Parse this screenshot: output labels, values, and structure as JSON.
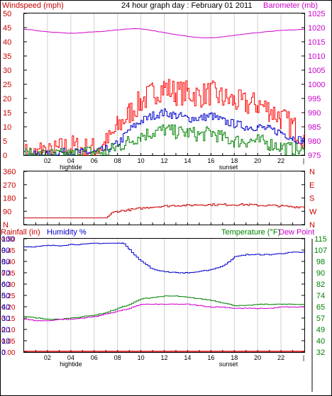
{
  "header": {
    "top_left": "Windspeed (mph)",
    "top_center": "24 hour graph day : February 01 2011",
    "top_right": "Barometer (mb)",
    "bottom_left_1": "Rainfall (in)",
    "bottom_left_2": "Humidity %",
    "bottom_right_1": "Temperature (°F)",
    "bottom_right_2": "Dew Point",
    "x_annot": [
      {
        "label": "hightide",
        "x": 4
      },
      {
        "label": "sunset",
        "x": 17.5
      }
    ]
  },
  "colors": {
    "wind": "#ff0000",
    "gust": "#cc0000",
    "avg_wind": "#0000cc",
    "wind_green": "#008000",
    "barometer": "#cc00cc",
    "direction": "#cc0000",
    "rain": "#cc0000",
    "humidity": "#0000cc",
    "temperature": "#008000",
    "dewpoint": "#cc00cc",
    "left_label": "#cc0000",
    "blue_label": "#0000cc",
    "green_label": "#008000",
    "magenta_label": "#cc00cc"
  },
  "chart_data": [
    {
      "type": "line",
      "x_ticks": [
        "02",
        "04",
        "06",
        "08",
        "10",
        "12",
        "14",
        "16",
        "18",
        "20",
        "22"
      ],
      "x_tick_values": [
        2,
        4,
        6,
        8,
        10,
        12,
        14,
        16,
        18,
        20,
        22
      ],
      "xlim": [
        0,
        24
      ],
      "ylim_left": [
        0,
        50
      ],
      "ylim_right": [
        975,
        1025
      ],
      "y_ticks_left": [
        "0",
        "5",
        "10",
        "15",
        "20",
        "25",
        "30",
        "35",
        "40",
        "45",
        "50"
      ],
      "y_ticks_right": [
        "975",
        "980",
        "985",
        "990",
        "995",
        "1000",
        "1005",
        "1010",
        "1015",
        "1020",
        "1025"
      ],
      "series": [
        {
          "axis": "left",
          "x": [
            0,
            1,
            1.5,
            2,
            3,
            4,
            5,
            6,
            7,
            8,
            9,
            10,
            11,
            12,
            13,
            14,
            15,
            16,
            17,
            18,
            19,
            20,
            21,
            22,
            23,
            24
          ],
          "values": [
            0,
            0,
            2,
            0,
            2,
            3,
            2,
            2,
            4,
            10,
            15,
            19,
            22,
            24,
            22,
            22,
            21,
            22,
            20,
            19,
            18,
            18,
            16,
            13,
            10,
            6
          ]
        },
        {
          "axis": "left",
          "x": [
            0,
            2,
            3,
            4,
            5,
            6,
            7,
            8,
            9,
            10,
            11,
            12,
            13,
            14,
            15,
            16,
            17,
            18,
            19,
            20,
            21,
            22,
            23,
            24
          ],
          "values": [
            0,
            0,
            1,
            1,
            1,
            1,
            2,
            4,
            9,
            12,
            14,
            15,
            14,
            13,
            13,
            14,
            12,
            11,
            10,
            10,
            9,
            8,
            6,
            5
          ]
        },
        {
          "axis": "left",
          "x": [
            0,
            2,
            3,
            4,
            5,
            6,
            7,
            8,
            9,
            10,
            11,
            12,
            13,
            14,
            15,
            16,
            17,
            18,
            19,
            20,
            21,
            22,
            23,
            24
          ],
          "values": [
            0,
            0,
            0,
            0,
            1,
            1,
            1,
            3,
            5,
            7,
            8,
            9,
            8,
            8,
            7,
            8,
            6,
            5,
            5,
            5,
            4,
            3,
            2,
            1
          ]
        },
        {
          "axis": "right",
          "x": [
            0,
            1,
            2,
            3,
            4,
            5,
            6,
            7,
            8,
            9,
            10,
            11,
            12,
            13,
            14,
            15,
            16,
            17,
            18,
            19,
            20,
            21,
            22,
            23,
            24
          ],
          "values": [
            1019.5,
            1019,
            1018.5,
            1018.2,
            1018,
            1018.2,
            1018.5,
            1018.8,
            1019.2,
            1019.6,
            1019.6,
            1019,
            1018.2,
            1017.5,
            1017,
            1016.5,
            1016.4,
            1016.7,
            1017.3,
            1017.8,
            1018.2,
            1018.6,
            1019,
            1019.2,
            1019.4
          ]
        }
      ]
    },
    {
      "type": "line",
      "ylim": [
        0,
        360
      ],
      "y_ticks": [
        "N",
        "90",
        "180",
        "270",
        "360"
      ],
      "y_tick_values": [
        0,
        90,
        180,
        270,
        360
      ],
      "right_labels": [
        "N",
        "W",
        "S",
        "E",
        "N"
      ],
      "series": [
        {
          "x": [
            0,
            1,
            2,
            3,
            4,
            5,
            6,
            7,
            7.5,
            8,
            9,
            10,
            11,
            12,
            13,
            14,
            15,
            16,
            17,
            18,
            19,
            20,
            21,
            22,
            23,
            24
          ],
          "values": [
            45,
            45,
            45,
            45,
            45,
            45,
            45,
            45,
            80,
            90,
            100,
            110,
            120,
            125,
            130,
            130,
            135,
            135,
            135,
            135,
            135,
            130,
            130,
            125,
            120,
            120
          ]
        }
      ]
    },
    {
      "type": "line",
      "ylim_left": [
        0,
        100
      ],
      "y_ticks_left": [
        "0",
        "10",
        "20",
        "30",
        "40",
        "50",
        "60",
        "70",
        "80",
        "90",
        "100"
      ],
      "y_ticks_rain": [
        "0.00",
        "0.05",
        "0.10",
        "0.15",
        "0.20",
        "0.25",
        "0.30",
        "0.35",
        "0.40",
        "0.45",
        "0.50"
      ],
      "ylim_right": [
        32,
        115
      ],
      "y_ticks_right": [
        "32",
        "40",
        "49",
        "57",
        "65",
        "74",
        "82",
        "90",
        "98",
        "107",
        "115"
      ],
      "series": [
        {
          "axis": "left",
          "x": [
            0,
            1,
            2,
            3,
            4,
            5,
            6,
            7,
            8,
            8.5,
            9,
            10,
            11,
            12,
            13,
            14,
            15,
            16,
            17,
            17.5,
            18,
            19,
            20,
            21,
            22,
            23,
            24
          ],
          "values": [
            93,
            93,
            94,
            94,
            95,
            95,
            96,
            96,
            96,
            96,
            90,
            80,
            73,
            71,
            70,
            70,
            71,
            73,
            76,
            80,
            84,
            86,
            86,
            86,
            87,
            88,
            88
          ]
        },
        {
          "axis": "right",
          "x": [
            0,
            1,
            2,
            3,
            4,
            5,
            6,
            7,
            8,
            9,
            10,
            11,
            12,
            13,
            14,
            15,
            16,
            17,
            18,
            19,
            20,
            21,
            22,
            23,
            24
          ],
          "values": [
            58,
            57,
            56,
            56,
            57,
            58,
            59,
            61,
            64,
            67,
            71,
            72,
            73,
            73,
            72,
            71,
            70,
            68,
            66,
            66,
            67,
            67,
            67,
            67,
            67
          ]
        },
        {
          "axis": "right",
          "x": [
            0,
            1,
            2,
            3,
            4,
            5,
            6,
            7,
            8,
            9,
            10,
            11,
            12,
            13,
            14,
            15,
            16,
            17,
            18,
            19,
            20,
            21,
            22,
            23,
            24
          ],
          "values": [
            56,
            55,
            55,
            56,
            56,
            57,
            58,
            60,
            62,
            64,
            67,
            67,
            67,
            67,
            67,
            66,
            65,
            65,
            64,
            64,
            64,
            64,
            65,
            65,
            65
          ]
        },
        {
          "axis": "rain",
          "values": [
            0,
            0
          ]
        }
      ]
    }
  ]
}
